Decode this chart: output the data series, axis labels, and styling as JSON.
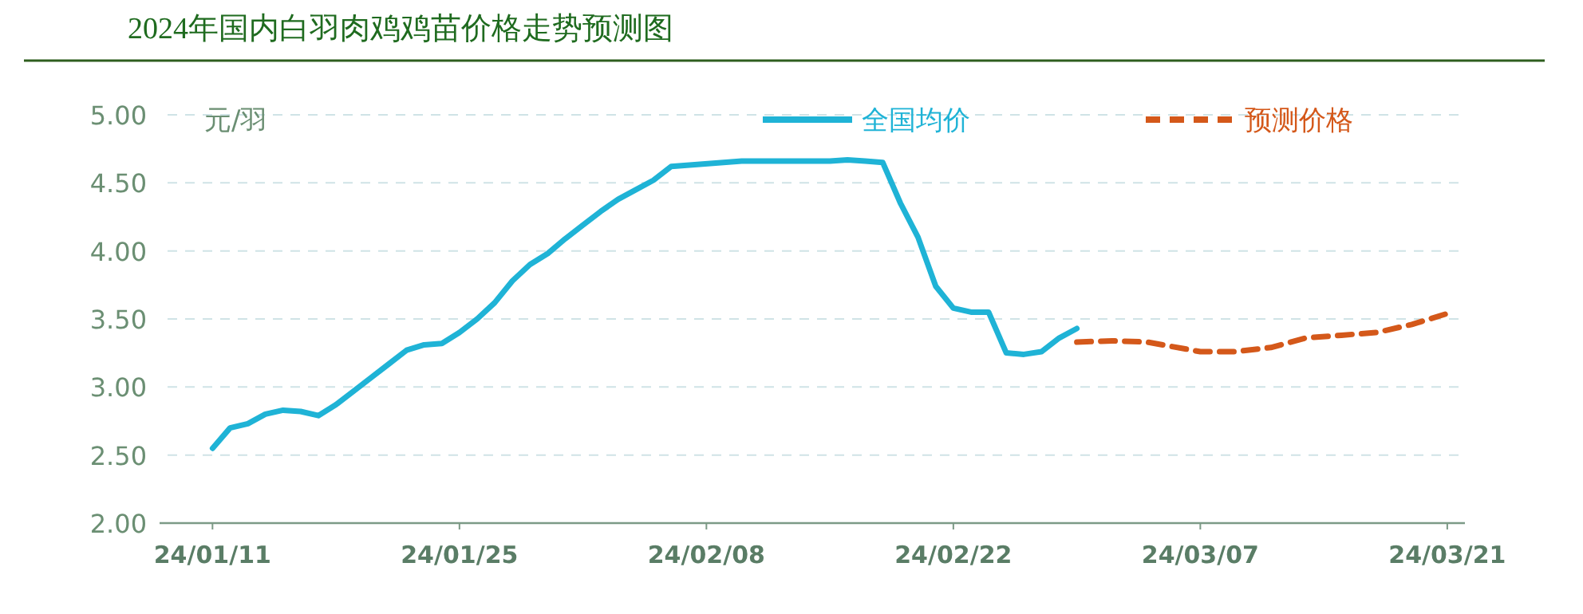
{
  "chart_data": {
    "type": "line",
    "title": "2024年国内白羽肉鸡鸡苗价格走势预测图",
    "ylabel": "元/羽",
    "xlim": [
      "2024-01-08",
      "2024-03-22"
    ],
    "xticks": [
      {
        "value": "2024-01-11",
        "label": "24/01/11"
      },
      {
        "value": "2024-01-25",
        "label": "24/01/25"
      },
      {
        "value": "2024-02-08",
        "label": "24/02/08"
      },
      {
        "value": "2024-02-22",
        "label": "24/02/22"
      },
      {
        "value": "2024-03-07",
        "label": "24/03/07"
      },
      {
        "value": "2024-03-21",
        "label": "24/03/21"
      }
    ],
    "ylim": [
      2,
      5
    ],
    "yticks": [
      {
        "value": 2,
        "label": "2.00"
      },
      {
        "value": 2.5,
        "label": "2.50"
      },
      {
        "value": 3,
        "label": "3.00"
      },
      {
        "value": 3.5,
        "label": "3.50"
      },
      {
        "value": 4,
        "label": "4.00"
      },
      {
        "value": 4.5,
        "label": "4.50"
      },
      {
        "value": 5,
        "label": "5.00"
      }
    ],
    "grid": "y",
    "legend": "top",
    "series": [
      {
        "name": "全国均价",
        "color": "#1fb3d6",
        "line_style": "solid",
        "x": [
          "2024-01-11",
          "2024-01-12",
          "2024-01-13",
          "2024-01-14",
          "2024-01-15",
          "2024-01-16",
          "2024-01-17",
          "2024-01-18",
          "2024-01-19",
          "2024-01-20",
          "2024-01-21",
          "2024-01-22",
          "2024-01-23",
          "2024-01-24",
          "2024-01-25",
          "2024-01-26",
          "2024-01-27",
          "2024-01-28",
          "2024-01-29",
          "2024-01-30",
          "2024-01-31",
          "2024-02-01",
          "2024-02-02",
          "2024-02-03",
          "2024-02-04",
          "2024-02-05",
          "2024-02-06",
          "2024-02-10",
          "2024-02-14",
          "2024-02-15",
          "2024-02-16",
          "2024-02-17",
          "2024-02-18",
          "2024-02-19",
          "2024-02-20",
          "2024-02-21",
          "2024-02-22",
          "2024-02-23",
          "2024-02-24",
          "2024-02-25",
          "2024-02-26",
          "2024-02-27",
          "2024-02-28",
          "2024-02-29"
        ],
        "values": [
          2.55,
          2.7,
          2.73,
          2.8,
          2.83,
          2.82,
          2.79,
          2.87,
          2.97,
          3.07,
          3.17,
          3.27,
          3.31,
          3.32,
          3.4,
          3.5,
          3.62,
          3.78,
          3.9,
          3.98,
          4.09,
          4.19,
          4.29,
          4.38,
          4.45,
          4.52,
          4.62,
          4.66,
          4.66,
          4.66,
          4.67,
          4.66,
          4.65,
          4.35,
          4.1,
          3.74,
          3.58,
          3.55,
          3.55,
          3.25,
          3.24,
          3.26,
          3.36,
          3.43
        ]
      },
      {
        "name": "预测价格",
        "color": "#d4581a",
        "line_style": "dashed",
        "x": [
          "2024-02-29",
          "2024-03-02",
          "2024-03-04",
          "2024-03-07",
          "2024-03-09",
          "2024-03-11",
          "2024-03-13",
          "2024-03-15",
          "2024-03-17",
          "2024-03-19",
          "2024-03-21"
        ],
        "values": [
          3.33,
          3.34,
          3.33,
          3.26,
          3.26,
          3.29,
          3.36,
          3.38,
          3.4,
          3.46,
          3.54
        ]
      }
    ]
  }
}
